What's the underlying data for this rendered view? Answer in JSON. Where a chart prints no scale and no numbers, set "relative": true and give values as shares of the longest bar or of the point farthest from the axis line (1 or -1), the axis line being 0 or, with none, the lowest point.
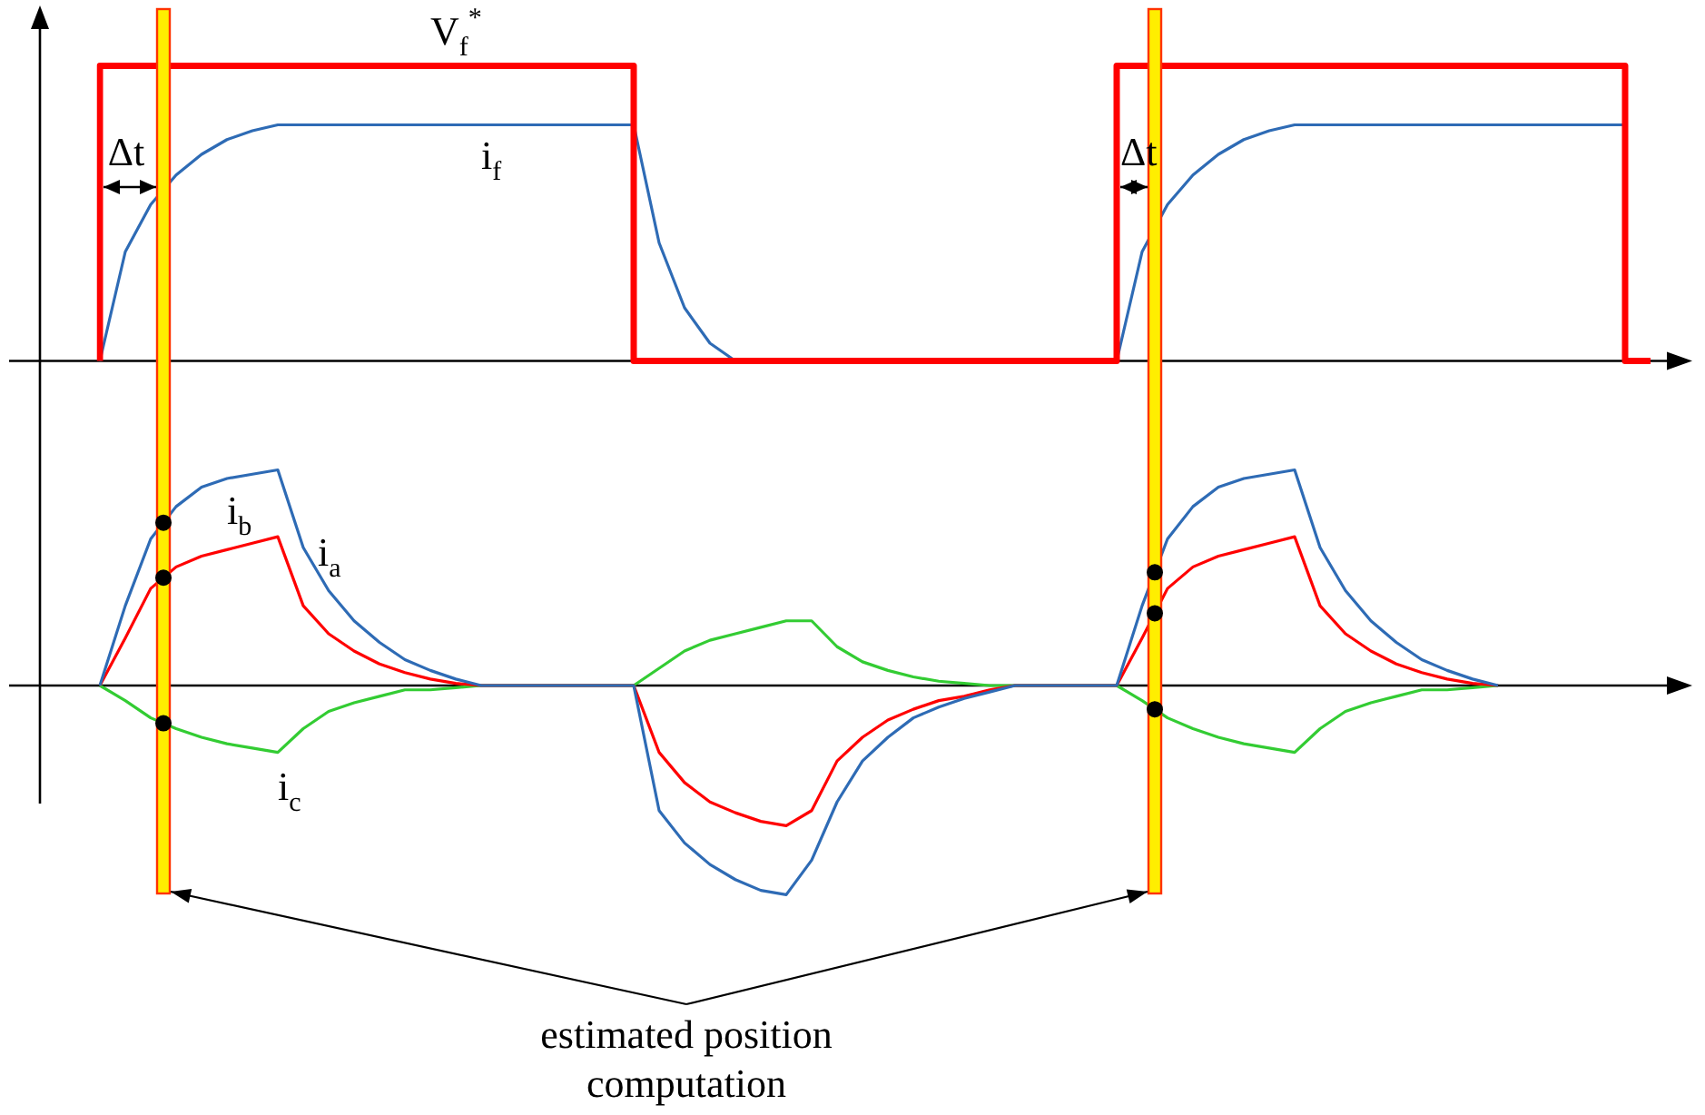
{
  "chart_data": [
    {
      "type": "line",
      "relative": true,
      "legend": false,
      "grid": false,
      "marker": "none",
      "categories": [
        null,
        null,
        null,
        null,
        null,
        null,
        null,
        null,
        null,
        null,
        null,
        null,
        null,
        null,
        null,
        null,
        null,
        null,
        null,
        null,
        null,
        null,
        null,
        null,
        null,
        null,
        null,
        null,
        null,
        null,
        null,
        null,
        null,
        null,
        null,
        null,
        null,
        null,
        null,
        null,
        null,
        null,
        null,
        null,
        null,
        null,
        null,
        null,
        null,
        null,
        null,
        null,
        null,
        null,
        null,
        null,
        null,
        null,
        null,
        null,
        null,
        null
      ],
      "series": [
        {
          "name": "V$_{f}$$^{*}$",
          "type": "step",
          "color": "#ff0000",
          "values": [
            0,
            1,
            1,
            1,
            1,
            1,
            1,
            1,
            1,
            1,
            1,
            1,
            1,
            1,
            1,
            1,
            1,
            1,
            1,
            1,
            1,
            1,
            0,
            0,
            0,
            0,
            0,
            0,
            0,
            0,
            0,
            0,
            0,
            0,
            0,
            0,
            0,
            0,
            0,
            0,
            0,
            1,
            1,
            1,
            1,
            1,
            1,
            1,
            1,
            1,
            1,
            1,
            1,
            1,
            1,
            1,
            1,
            1,
            1,
            1,
            1,
            0
          ]
        },
        {
          "name": "i$_{f}$",
          "type": "line",
          "color": "#2e6bb5",
          "values": [
            0,
            0.37,
            0.53,
            0.63,
            0.7,
            0.75,
            0.78,
            0.8,
            0.8,
            0.8,
            0.8,
            0.8,
            0.8,
            0.8,
            0.8,
            0.8,
            0.8,
            0.8,
            0.8,
            0.8,
            0.8,
            0.8,
            0.4,
            0.18,
            0.06,
            0,
            0,
            0,
            0,
            0,
            0,
            0,
            0,
            0,
            0,
            0,
            0,
            0,
            0,
            0,
            0,
            0.37,
            0.53,
            0.63,
            0.7,
            0.75,
            0.78,
            0.8,
            0.8,
            0.8,
            0.8,
            0.8,
            0.8,
            0.8,
            0.8,
            0.8,
            0.8,
            0.8,
            0.8,
            0.8,
            0.8,
            null
          ]
        }
      ],
      "annotations": [
        "Δt",
        "Δt"
      ]
    },
    {
      "type": "line",
      "relative": true,
      "legend": false,
      "grid": false,
      "marker": "none",
      "categories": [
        null,
        null,
        null,
        null,
        null,
        null,
        null,
        null,
        null,
        null,
        null,
        null,
        null,
        null,
        null,
        null,
        null,
        null,
        null,
        null,
        null,
        null,
        null,
        null,
        null,
        null,
        null,
        null,
        null,
        null,
        null,
        null,
        null,
        null,
        null,
        null,
        null,
        null,
        null,
        null,
        null,
        null,
        null,
        null,
        null,
        null,
        null,
        null,
        null,
        null,
        null,
        null,
        null,
        null,
        null,
        null,
        null,
        null,
        null,
        null,
        null,
        null
      ],
      "series": [
        {
          "name": "i$_{a}$",
          "type": "line",
          "color": "#2e6bb5",
          "values": [
            0,
            0.37,
            0.68,
            0.83,
            0.92,
            0.96,
            0.98,
            1,
            0.64,
            0.44,
            0.3,
            0.2,
            0.12,
            0.07,
            0.03,
            0,
            0,
            0,
            0,
            0,
            0,
            0,
            -0.58,
            -0.73,
            -0.83,
            -0.9,
            -0.95,
            -0.97,
            -0.81,
            -0.54,
            -0.35,
            -0.24,
            -0.15,
            -0.1,
            -0.06,
            -0.03,
            0,
            0,
            0,
            0,
            0,
            0.37,
            0.68,
            0.83,
            0.92,
            0.96,
            0.98,
            1,
            0.64,
            0.44,
            0.3,
            0.2,
            0.12,
            0.07,
            0.03,
            0,
            null,
            null,
            null,
            null,
            null,
            null
          ]
        },
        {
          "name": "i$_{b}$",
          "type": "line",
          "color": "#ff0000",
          "values": [
            0,
            0.22,
            0.45,
            0.55,
            0.6,
            0.63,
            0.66,
            0.69,
            0.37,
            0.24,
            0.16,
            0.1,
            0.06,
            0.03,
            0.01,
            0,
            0,
            0,
            0,
            0,
            0,
            0,
            -0.31,
            -0.45,
            -0.54,
            -0.59,
            -0.63,
            -0.65,
            -0.58,
            -0.35,
            -0.24,
            -0.16,
            -0.11,
            -0.07,
            -0.05,
            -0.02,
            0,
            0,
            0,
            0,
            0,
            0.22,
            0.45,
            0.55,
            0.6,
            0.63,
            0.66,
            0.69,
            0.37,
            0.24,
            0.16,
            0.1,
            0.06,
            0.03,
            0.01,
            0,
            null,
            null,
            null,
            null,
            null,
            null
          ]
        },
        {
          "name": "i$_{c}$",
          "type": "line",
          "color": "#33cc33",
          "values": [
            0,
            -0.07,
            -0.15,
            -0.2,
            -0.24,
            -0.27,
            -0.29,
            -0.31,
            -0.2,
            -0.12,
            -0.08,
            -0.05,
            -0.02,
            -0.02,
            -0.01,
            0,
            0,
            0,
            0,
            0,
            0,
            0,
            0.08,
            0.16,
            0.21,
            0.24,
            0.27,
            0.3,
            0.3,
            0.18,
            0.11,
            0.07,
            0.04,
            0.02,
            0.01,
            0,
            0,
            0,
            0,
            0,
            0,
            -0.07,
            -0.15,
            -0.2,
            -0.24,
            -0.27,
            -0.29,
            -0.31,
            -0.2,
            -0.12,
            -0.08,
            -0.05,
            -0.02,
            -0.02,
            -0.01,
            0,
            null,
            null,
            null,
            null,
            null,
            null
          ]
        }
      ],
      "annotations": [
        "estimated position computation"
      ]
    }
  ]
}
